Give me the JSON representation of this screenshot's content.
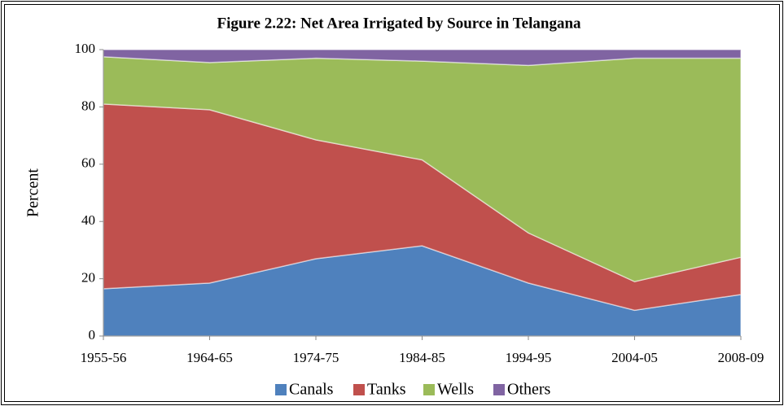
{
  "chart_data": {
    "type": "stacked_area",
    "title": "Figure  2.22:  Net Area Irrigated by Source in  Telangana",
    "y_label": "Percent",
    "categories": [
      "1955-56",
      "1964-65",
      "1974-75",
      "1984-85",
      "1994-95",
      "2004-05",
      "2008-09"
    ],
    "series": [
      {
        "name": "Canals",
        "color": "#4f81bd",
        "values": [
          16.5,
          18.5,
          27,
          31.5,
          18.5,
          9,
          14.5
        ]
      },
      {
        "name": "Tanks",
        "color": "#c0504d",
        "values": [
          64.5,
          60.5,
          41.5,
          30,
          17.5,
          10,
          13
        ]
      },
      {
        "name": "Wells",
        "color": "#9bbb59",
        "values": [
          16.5,
          16.5,
          28.5,
          34.5,
          58.5,
          78,
          69.5
        ]
      },
      {
        "name": "Others",
        "color": "#8064a2",
        "values": [
          2.5,
          4.5,
          3,
          4,
          5.5,
          3,
          3
        ]
      }
    ],
    "ylim": [
      0,
      100
    ],
    "yticks": [
      0,
      20,
      40,
      60,
      80,
      100
    ],
    "legend": "bottom"
  }
}
